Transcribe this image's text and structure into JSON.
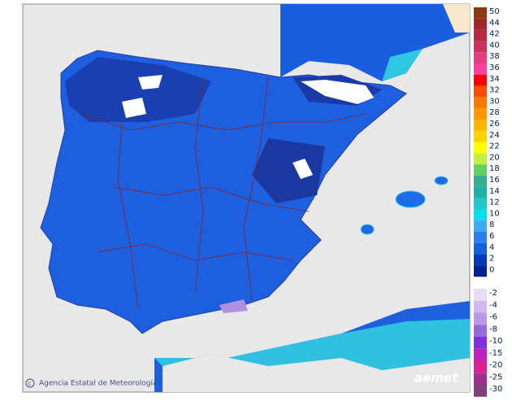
{
  "credit": "Agencia Estatal de Meteorología",
  "logo": "aemet",
  "scale_upper": [
    {
      "label": 50,
      "color": "#8b3a0f"
    },
    {
      "label": 44,
      "color": "#a02828"
    },
    {
      "label": 42,
      "color": "#b82840"
    },
    {
      "label": 40,
      "color": "#d03060"
    },
    {
      "label": 38,
      "color": "#e83c80"
    },
    {
      "label": 36,
      "color": "#ff40a0"
    },
    {
      "label": 34,
      "color": "#ff0000"
    },
    {
      "label": 32,
      "color": "#ff4a00"
    },
    {
      "label": 30,
      "color": "#ff7800"
    },
    {
      "label": 28,
      "color": "#ff9800"
    },
    {
      "label": 26,
      "color": "#ffb400"
    },
    {
      "label": 24,
      "color": "#ffd200"
    },
    {
      "label": 22,
      "color": "#ffff00"
    },
    {
      "label": 20,
      "color": "#c0f040"
    },
    {
      "label": 18,
      "color": "#60d060"
    },
    {
      "label": 16,
      "color": "#30b090"
    },
    {
      "label": 14,
      "color": "#20b0a8"
    },
    {
      "label": 12,
      "color": "#20c8c8"
    },
    {
      "label": 10,
      "color": "#00e0e8"
    },
    {
      "label": 8,
      "color": "#40a8ff"
    },
    {
      "label": 6,
      "color": "#2880f0"
    },
    {
      "label": 4,
      "color": "#1060e0"
    },
    {
      "label": 2,
      "color": "#0038c0"
    },
    {
      "label": 0,
      "color": "#002090"
    }
  ],
  "scale_lower": [
    {
      "label": -2,
      "color": "#e8dcf4"
    },
    {
      "label": -4,
      "color": "#d0b8f0"
    },
    {
      "label": -6,
      "color": "#b898e8"
    },
    {
      "label": -8,
      "color": "#9868e0"
    },
    {
      "label": -10,
      "color": "#8030e0"
    },
    {
      "label": -15,
      "color": "#c020c0"
    },
    {
      "label": -20,
      "color": "#e02090"
    },
    {
      "label": -25,
      "color": "#a03090"
    },
    {
      "label": -30,
      "color": "#804080"
    }
  ]
}
